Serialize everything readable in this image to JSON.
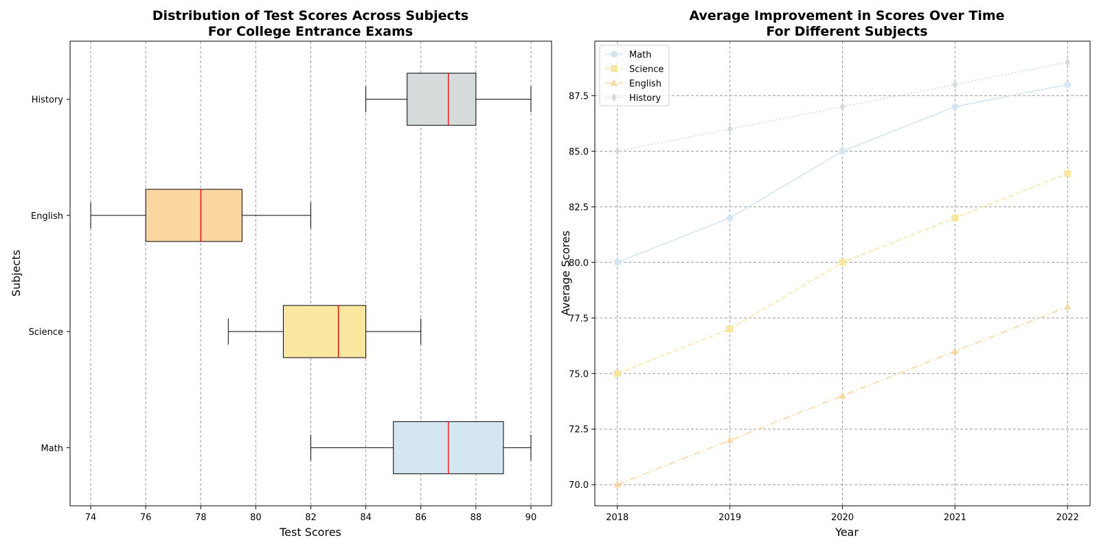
{
  "chart_data": [
    {
      "type": "boxplot",
      "orientation": "horizontal",
      "title_line1": "Distribution of Test Scores Across Subjects",
      "title_line2": "For College Entrance Exams",
      "xlabel": "Test Scores",
      "ylabel": "Subjects",
      "xlim": [
        73.25,
        90.75
      ],
      "xticks": [
        "74",
        "76",
        "78",
        "80",
        "82",
        "84",
        "86",
        "88",
        "90"
      ],
      "grid": "vertical dashed",
      "boxes": [
        {
          "label": "Math",
          "whisker_low": 82,
          "q1": 85,
          "median": 87,
          "q3": 89,
          "whisker_high": 90,
          "color": "#d4e6f1"
        },
        {
          "label": "Science",
          "whisker_low": 79,
          "q1": 81,
          "median": 83,
          "q3": 84,
          "whisker_high": 86,
          "color": "#f9e79f"
        },
        {
          "label": "English",
          "whisker_low": 74,
          "q1": 76,
          "median": 78,
          "q3": 79.5,
          "whisker_high": 82,
          "color": "#fad7a0"
        },
        {
          "label": "History",
          "whisker_low": 84,
          "q1": 85.5,
          "median": 87,
          "q3": 88,
          "whisker_high": 90,
          "color": "#d5dbdb"
        }
      ],
      "median_color": "#ff0000"
    },
    {
      "type": "line",
      "title_line1": "Average Improvement in Scores Over Time",
      "title_line2": "For Different Subjects",
      "xlabel": "Year",
      "ylabel": "Average Scores",
      "x": [
        2018,
        2019,
        2020,
        2021,
        2022
      ],
      "xticks": [
        "2018",
        "2019",
        "2020",
        "2021",
        "2022"
      ],
      "ylim": [
        69.05,
        89.95
      ],
      "yticks": [
        "70.0",
        "72.5",
        "75.0",
        "77.5",
        "80.0",
        "82.5",
        "85.0",
        "87.5"
      ],
      "grid": "both dashed",
      "legend_position": "top-left",
      "series": [
        {
          "name": "Math",
          "values": [
            80,
            82,
            85,
            87,
            88
          ],
          "color": "#d4e6f1",
          "linestyle": "solid",
          "marker": "circle"
        },
        {
          "name": "Science",
          "values": [
            75,
            77,
            80,
            82,
            84
          ],
          "color": "#f9e79f",
          "linestyle": "dashed",
          "marker": "square"
        },
        {
          "name": "English",
          "values": [
            70,
            72,
            74,
            76,
            78
          ],
          "color": "#fad7a0",
          "linestyle": "dashdot",
          "marker": "triangle"
        },
        {
          "name": "History",
          "values": [
            85,
            86,
            87,
            88,
            89
          ],
          "color": "#d5dbdb",
          "linestyle": "dotted",
          "marker": "diamond"
        }
      ]
    }
  ]
}
